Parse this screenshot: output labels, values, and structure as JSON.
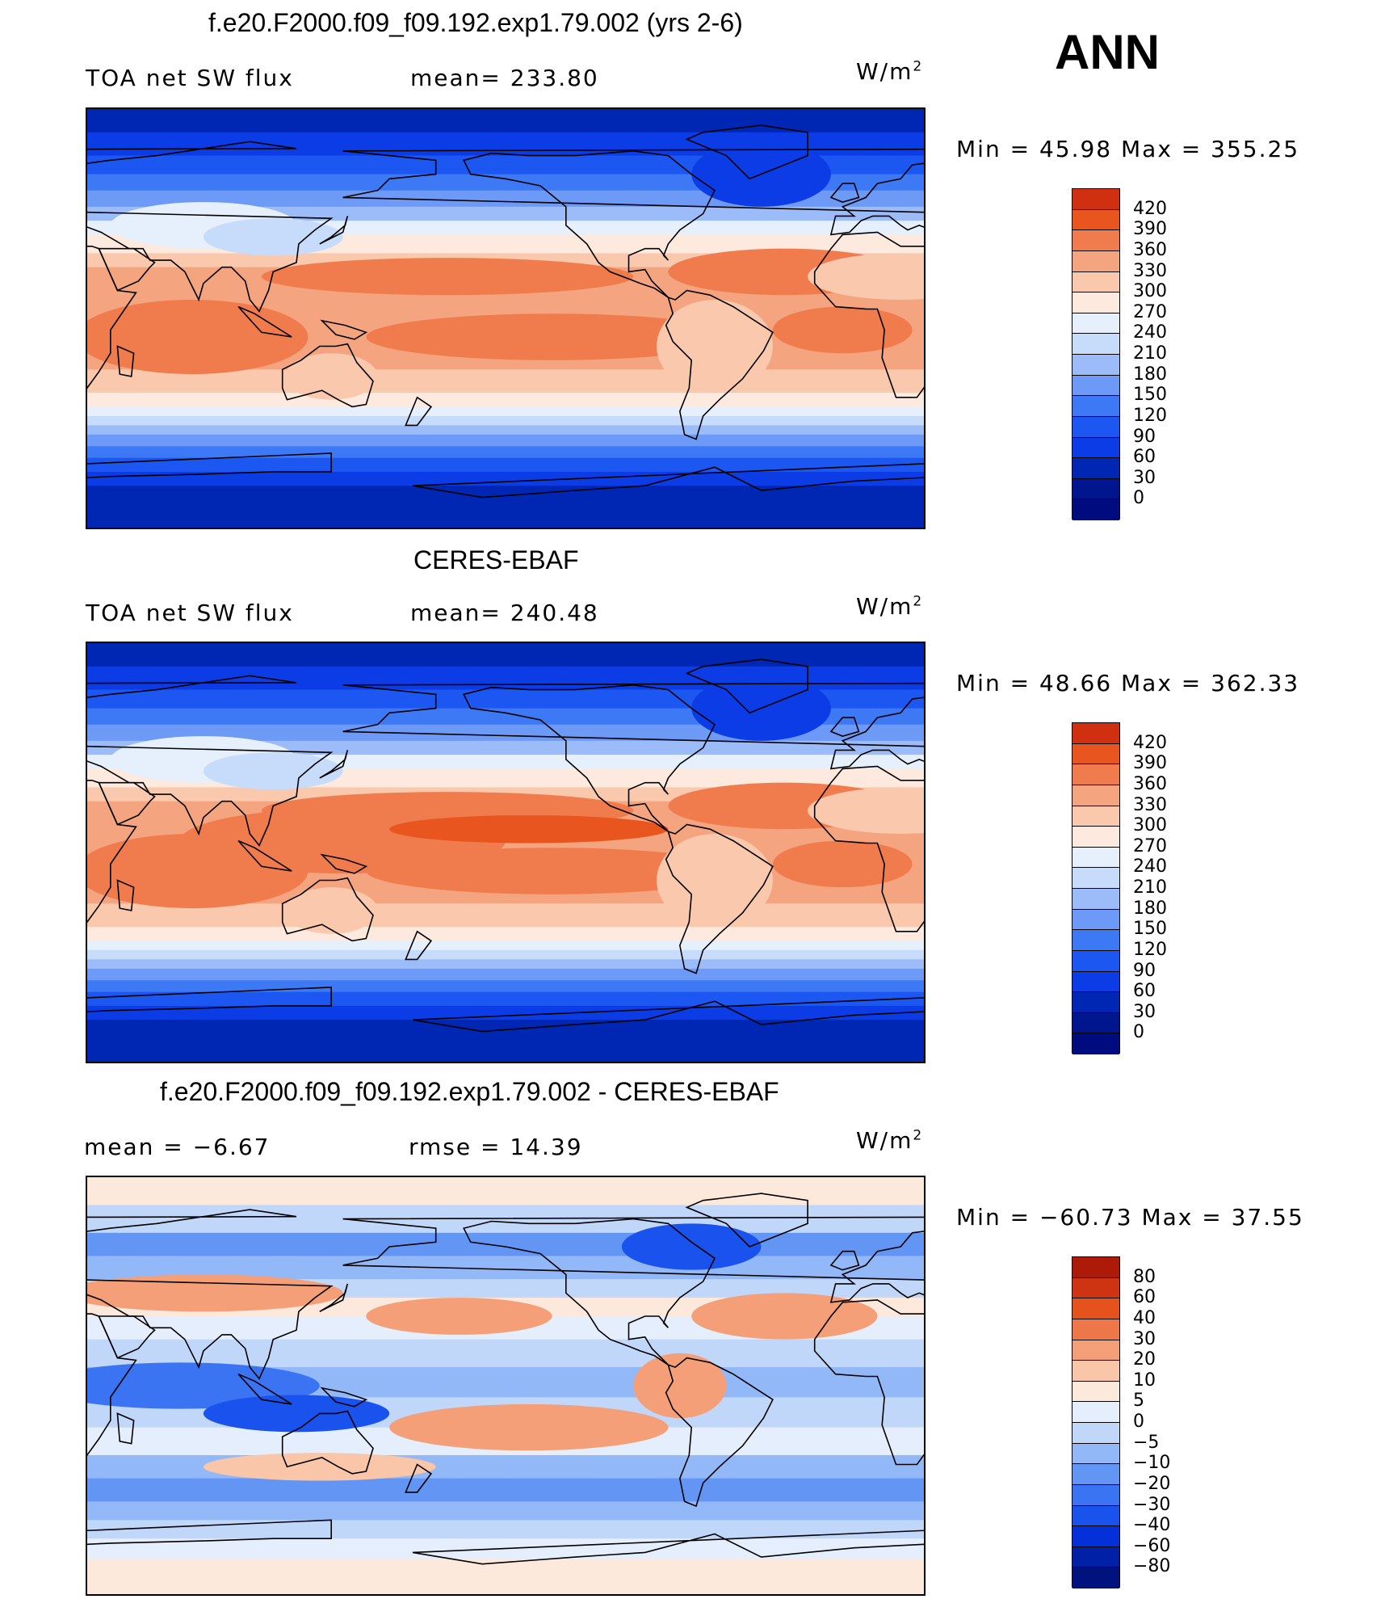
{
  "header": {
    "season": "ANN"
  },
  "colors": {
    "abs_scale": [
      "#000b80",
      "#00168f",
      "#0027b3",
      "#0c3ce6",
      "#1d57f2",
      "#3d78f5",
      "#6e9af7",
      "#9bbcf8",
      "#c6dcfa",
      "#e6effc",
      "#fde9dd",
      "#f9c8ad",
      "#f4a47f",
      "#f07b4d",
      "#e9551f",
      "#d13010",
      "#b01c08",
      "#8a0a02"
    ],
    "diff_scale": [
      "#00127e",
      "#0020a8",
      "#0330d9",
      "#1a52ee",
      "#3b74f2",
      "#6395f5",
      "#93b8f8",
      "#c0d7fa",
      "#e5eefc",
      "#fde8dc",
      "#f9c6aa",
      "#f49f78",
      "#ee7749",
      "#e6521c",
      "#cf3412",
      "#ad1a08",
      "#850a02"
    ]
  },
  "chart_data": [
    {
      "type": "heatmap",
      "title": "f.e20.F2000.f09_f09.192.exp1.79.002 (yrs 2-6)",
      "variable_label": "TOA net SW flux",
      "stat_label": "mean=  233.80",
      "units": "W/m",
      "units_exp": "2",
      "minmax_label": "Min  =    45.98  Max  =  355.25",
      "min": 45.98,
      "max": 355.25,
      "mean": 233.8,
      "colorbar": {
        "levels": [
          "420",
          "390",
          "360",
          "330",
          "300",
          "270",
          "240",
          "210",
          "180",
          "150",
          "120",
          "90",
          "60",
          "30",
          "0"
        ]
      }
    },
    {
      "type": "heatmap",
      "title": "CERES-EBAF",
      "variable_label": "TOA net SW flux",
      "stat_label": "mean=  240.48",
      "units": "W/m",
      "units_exp": "2",
      "minmax_label": "Min  =    48.66  Max  =  362.33",
      "min": 48.66,
      "max": 362.33,
      "mean": 240.48,
      "colorbar": {
        "levels": [
          "420",
          "390",
          "360",
          "330",
          "300",
          "270",
          "240",
          "210",
          "180",
          "150",
          "120",
          "90",
          "60",
          "30",
          "0"
        ]
      }
    },
    {
      "type": "heatmap",
      "title": "f.e20.F2000.f09_f09.192.exp1.79.002 - CERES-EBAF",
      "variable_label": "mean  =    −6.67",
      "stat_label": "rmse  =    14.39",
      "units": "W/m",
      "units_exp": "2",
      "minmax_label": "Min  = −60.73  Max  =    37.55",
      "min": -60.73,
      "max": 37.55,
      "mean": -6.67,
      "rmse": 14.39,
      "colorbar": {
        "levels": [
          "80",
          "60",
          "40",
          "30",
          "20",
          "10",
          "5",
          "0",
          "−5",
          "−10",
          "−20",
          "−30",
          "−40",
          "−60",
          "−80"
        ]
      }
    }
  ]
}
